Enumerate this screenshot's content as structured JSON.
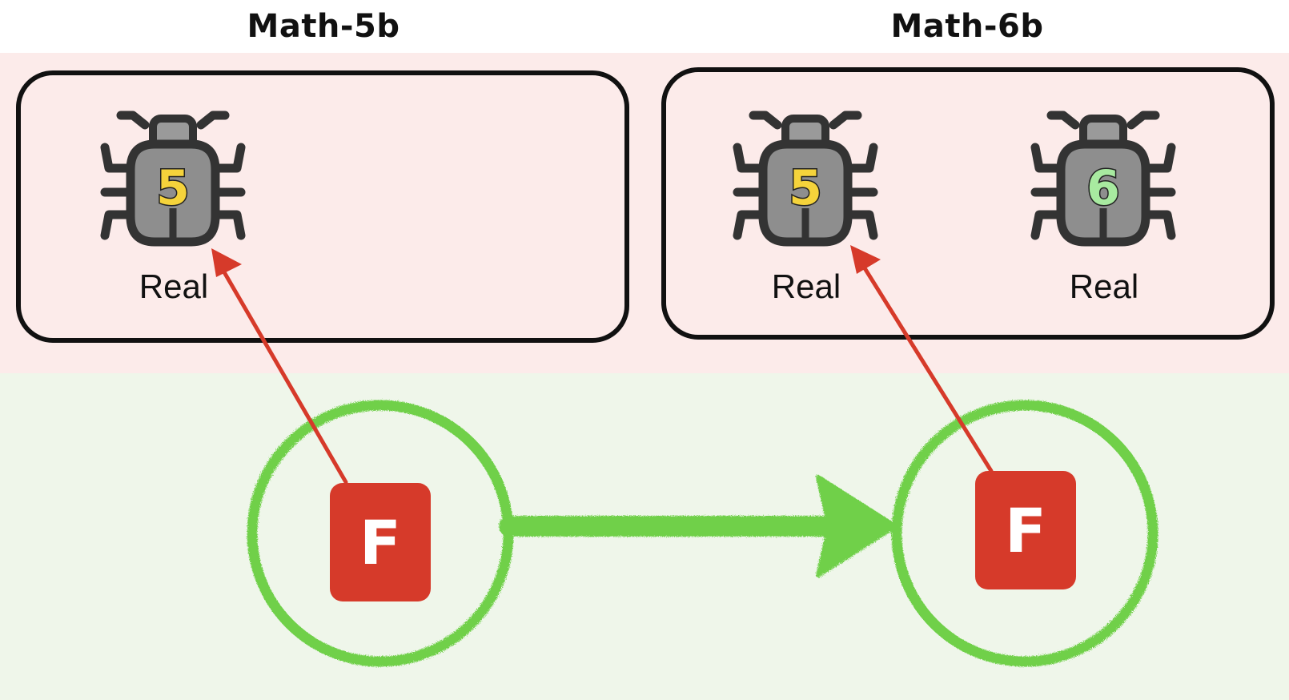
{
  "panels": [
    {
      "title": "Math-5b",
      "bugs": [
        {
          "number": "5",
          "label": "Real",
          "badge_color": "#f5d33b"
        }
      ],
      "file": {
        "label": "F"
      }
    },
    {
      "title": "Math-6b",
      "bugs": [
        {
          "number": "5",
          "label": "Real",
          "badge_color": "#f5d33b"
        },
        {
          "number": "6",
          "label": "Real",
          "badge_color": "#a8eaa0"
        }
      ],
      "file": {
        "label": "F"
      }
    }
  ],
  "colors": {
    "top_band": "#fcebea",
    "bottom_band": "#eff6ea",
    "file_tile": "#d63a2a",
    "link_arrow": "#d63a2a",
    "evolution_arrow": "#6fd04a",
    "bug_body": "#8e8e8e",
    "bug_outline": "#333333"
  },
  "icons": [
    "bug-icon",
    "file-icon"
  ]
}
